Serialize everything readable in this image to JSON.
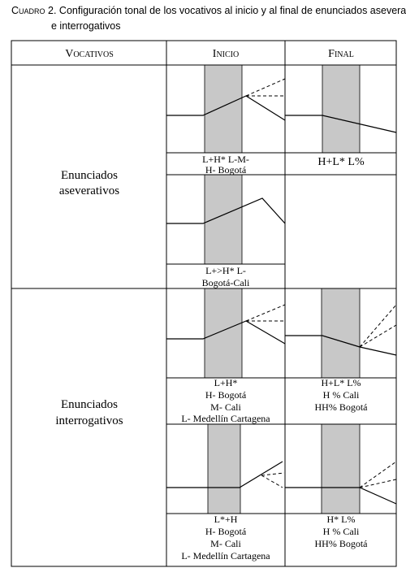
{
  "caption": {
    "label": "Cuadro 2.",
    "text": "Configuración tonal de los vocativos al inicio y al final de enunciados aseverativos",
    "text_line2": "e interrogativos"
  },
  "table": {
    "headers": [
      "Vocativos",
      "Inicio",
      "Final"
    ],
    "rows": [
      {
        "label": [
          "Enunciados",
          "aseverativos"
        ],
        "inicio": [
          [
            "L+H* L-M-",
            "H- Bogotá"
          ],
          [
            "L+>H* L-",
            "Bogotá-Cali"
          ]
        ],
        "final": [
          [
            "H+L* L%"
          ]
        ]
      },
      {
        "label": [
          "Enunciados",
          "interrogativos"
        ],
        "inicio": [
          [
            "L+H*",
            "H- Bogotá",
            "M- Cali",
            "L- Medellín Cartagena"
          ],
          [
            "L*+H",
            "H- Bogotá",
            "M- Cali",
            "L- Medellín Cartagena"
          ]
        ],
        "final": [
          [
            "H+L* L%",
            "H % Cali",
            "HH% Bogotá"
          ],
          [
            "H* L%",
            "H % Cali",
            "HH% Bogotá"
          ]
        ]
      }
    ]
  }
}
